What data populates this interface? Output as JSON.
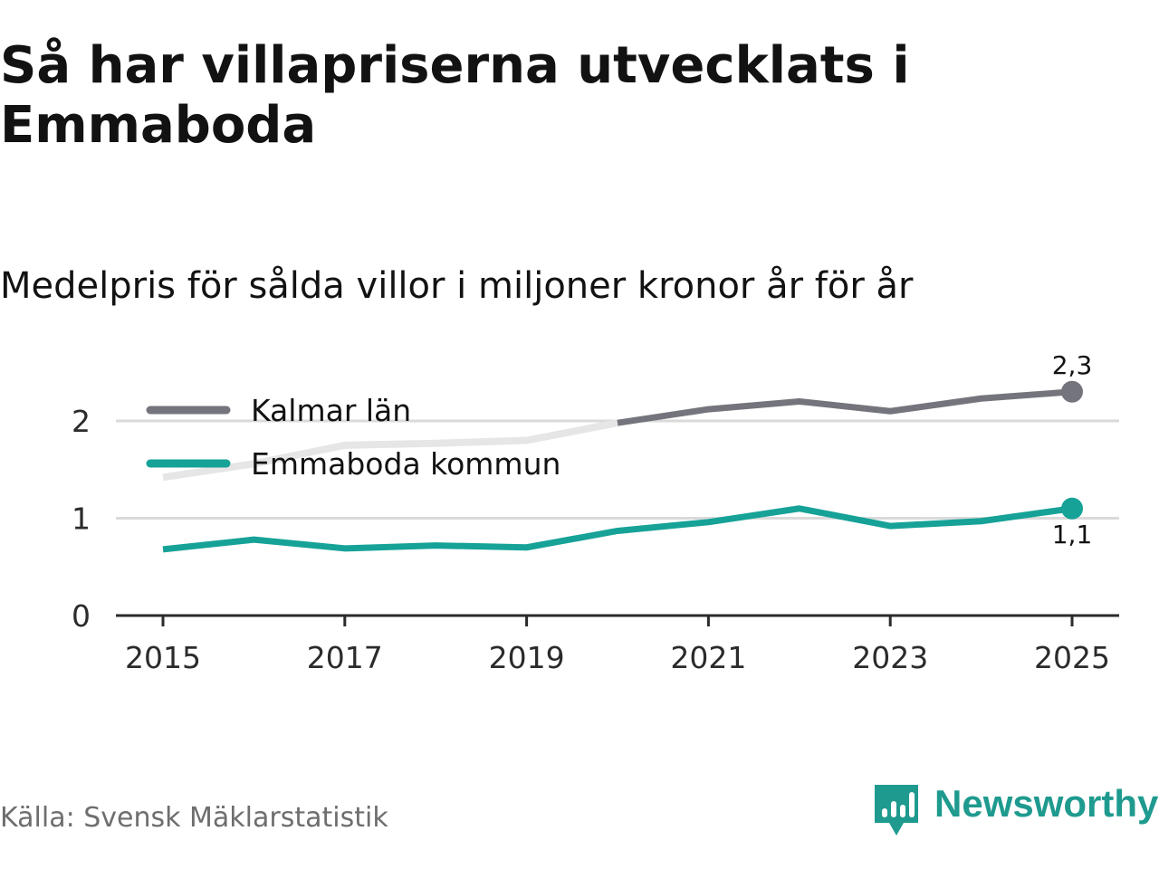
{
  "header": {
    "title": "Så har villapriserna utvecklats i Emmaboda",
    "subtitle": "Medelpris för sålda villor i miljoner kronor år för år"
  },
  "chart_data": {
    "type": "line",
    "title": "Så har villapriserna utvecklats i Emmaboda",
    "subtitle": "Medelpris för sålda villor i miljoner kronor år för år",
    "xlabel": "",
    "ylabel": "",
    "x": [
      2015,
      2016,
      2017,
      2018,
      2019,
      2020,
      2021,
      2022,
      2023,
      2024,
      2025
    ],
    "x_ticks": [
      "2015",
      "2017",
      "2019",
      "2021",
      "2023",
      "2025"
    ],
    "x_tick_values": [
      2015,
      2017,
      2019,
      2021,
      2023,
      2025
    ],
    "y_ticks": [
      "0",
      "1",
      "2"
    ],
    "y_tick_values": [
      0,
      1,
      2
    ],
    "xlim": [
      2014.5,
      2025.5
    ],
    "ylim": [
      0,
      2.5
    ],
    "grid": true,
    "legend_position": "top-left",
    "series": [
      {
        "name": "Kalmar län",
        "color": "#74747c",
        "faded_color": "#e6e6e6",
        "faded_until": 2020,
        "values": [
          1.42,
          1.56,
          1.75,
          1.77,
          1.8,
          1.98,
          2.12,
          2.2,
          2.1,
          2.23,
          2.3
        ],
        "end_label": "2,3",
        "end_label_position": "above"
      },
      {
        "name": "Emmaboda kommun",
        "color": "#16a297",
        "values": [
          0.68,
          0.78,
          0.69,
          0.72,
          0.7,
          0.87,
          0.96,
          1.1,
          0.92,
          0.97,
          1.1
        ],
        "end_label": "1,1",
        "end_label_position": "below"
      }
    ],
    "source": "Källa: Svensk Mäklarstatistik"
  },
  "footer": {
    "source": "Källa: Svensk Mäklarstatistik",
    "brand": "Newsworthy",
    "brand_color": "#1f9a8f",
    "logo_icon": "newsworthy-logo-icon"
  }
}
